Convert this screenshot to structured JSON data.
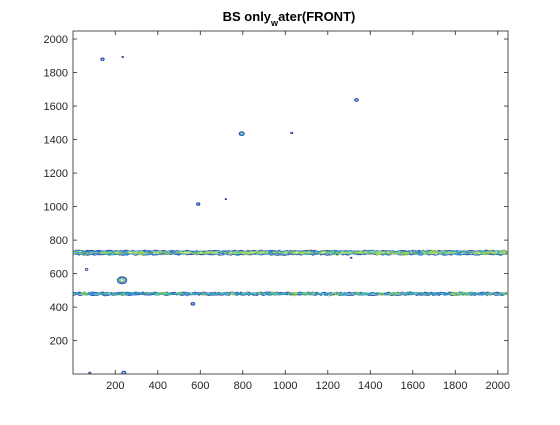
{
  "chart_data": {
    "type": "contour",
    "title_main_1": "BS only",
    "title_sub": "w",
    "title_main_2": "ater(FRONT)",
    "xlabel": "",
    "ylabel": "",
    "xlim": [
      1,
      2048
    ],
    "ylim": [
      1,
      2048
    ],
    "x_ticks": [
      200,
      400,
      600,
      800,
      1000,
      1200,
      1400,
      1600,
      1800,
      2000
    ],
    "x_tick_labels": [
      "200",
      "400",
      "600",
      "800",
      "1000",
      "1200",
      "1400",
      "1600",
      "1800",
      "2000"
    ],
    "y_ticks": [
      200,
      400,
      600,
      800,
      1000,
      1200,
      1400,
      1600,
      1800,
      2000
    ],
    "y_tick_labels": [
      "200",
      "400",
      "600",
      "800",
      "1000",
      "1200",
      "1400",
      "1600",
      "1800",
      "2000"
    ],
    "grid": false,
    "contour_colors": [
      "#1d2f8a",
      "#2e7bd6",
      "#3fb9a8",
      "#a7d64a",
      "#f0e442"
    ],
    "bands": [
      {
        "x_start": 1,
        "x_end": 2048,
        "y_center": 725,
        "thickness": 22,
        "levels": 4
      },
      {
        "x_start": 1,
        "x_end": 2048,
        "y_center": 480,
        "thickness": 12,
        "levels": 3
      }
    ],
    "spots": [
      {
        "x": 140,
        "y": 1880,
        "r": 8,
        "levels": 2
      },
      {
        "x": 235,
        "y": 1893,
        "r": 4,
        "levels": 1
      },
      {
        "x": 1335,
        "y": 1637,
        "r": 9,
        "levels": 2
      },
      {
        "x": 795,
        "y": 1435,
        "r": 12,
        "levels": 3
      },
      {
        "x": 1030,
        "y": 1440,
        "r": 5,
        "levels": 1
      },
      {
        "x": 590,
        "y": 1015,
        "r": 8,
        "levels": 2
      },
      {
        "x": 720,
        "y": 1045,
        "r": 3,
        "levels": 1
      },
      {
        "x": 232,
        "y": 560,
        "r": 22,
        "levels": 4
      },
      {
        "x": 565,
        "y": 420,
        "r": 9,
        "levels": 2
      },
      {
        "x": 65,
        "y": 625,
        "r": 6,
        "levels": 1
      },
      {
        "x": 1310,
        "y": 695,
        "r": 4,
        "levels": 1
      },
      {
        "x": 240,
        "y": 8,
        "r": 10,
        "levels": 2
      },
      {
        "x": 80,
        "y": 8,
        "r": 5,
        "levels": 1
      }
    ]
  }
}
